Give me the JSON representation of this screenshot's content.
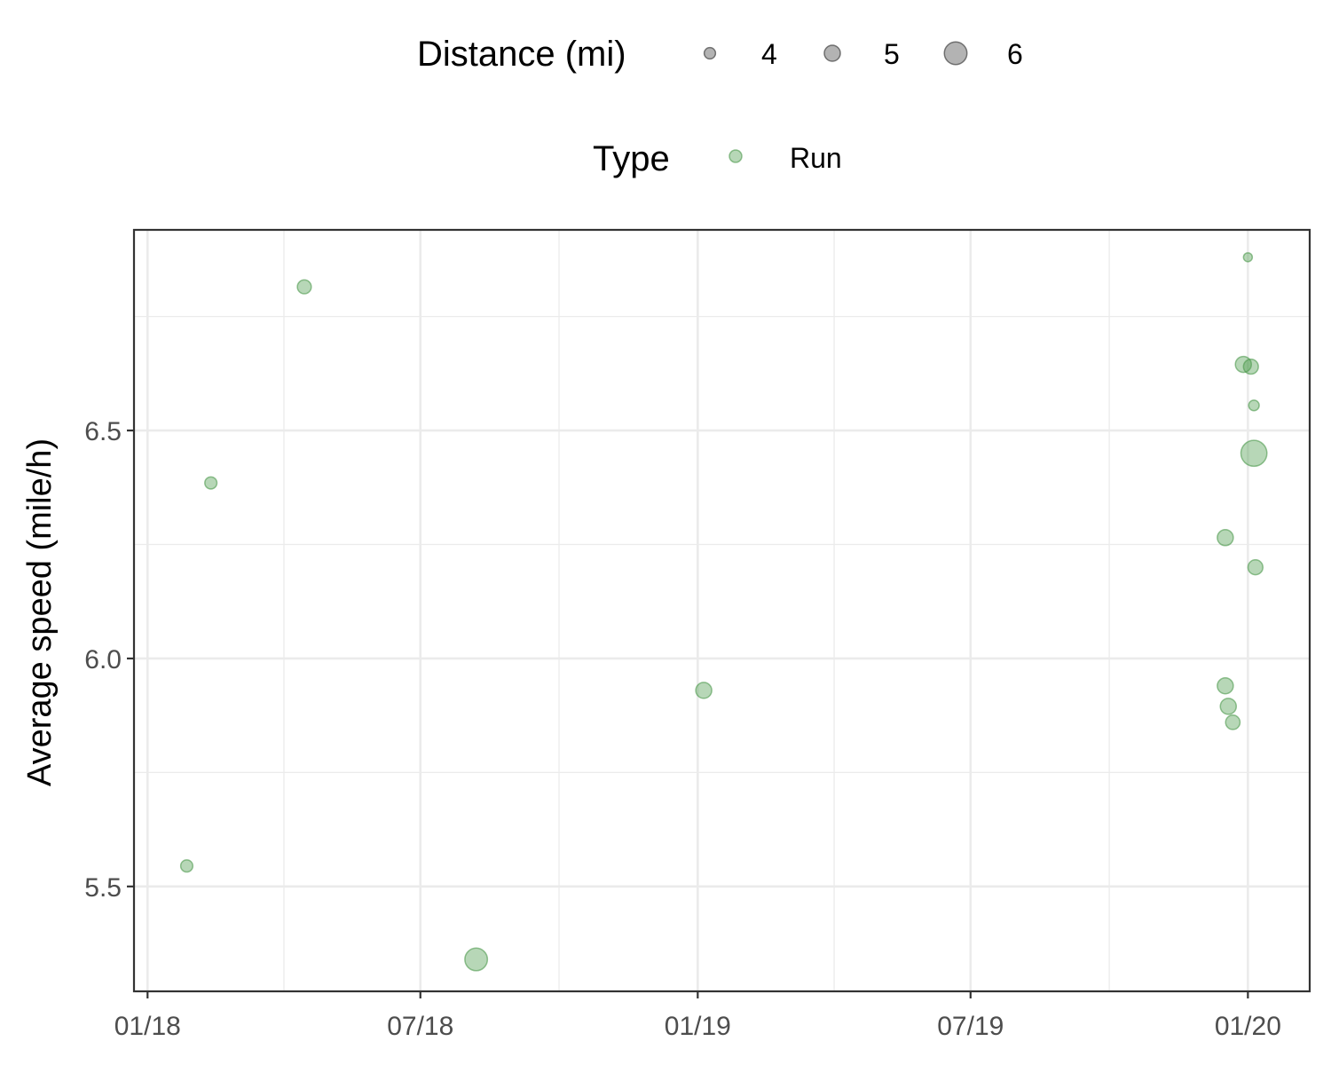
{
  "chart_data": {
    "type": "scatter",
    "title": "",
    "xlabel": "",
    "ylabel": "Average speed (mile/h)",
    "x_ticks": [
      "01/18",
      "07/18",
      "01/19",
      "07/19",
      "01/20"
    ],
    "x_tick_dates": [
      "2018-01-01",
      "2018-07-01",
      "2019-01-01",
      "2019-07-01",
      "2020-01-01"
    ],
    "xlim": [
      "2017-12-23",
      "2020-02-11"
    ],
    "ylim": [
      5.27,
      6.94
    ],
    "y_ticks": [
      5.5,
      6.0,
      6.5
    ],
    "grid": true,
    "colors": {
      "point": "#4c9a4c"
    },
    "legend": {
      "placement": "top",
      "size": {
        "title": "Distance (mi)",
        "entries": [
          4,
          5,
          6
        ]
      },
      "color": {
        "title": "Type",
        "entries": [
          "Run"
        ]
      }
    },
    "series": [
      {
        "name": "Run",
        "points": [
          {
            "date": "2018-01-27",
            "speed": 5.545,
            "distance_mi": 4.2
          },
          {
            "date": "2018-02-12",
            "speed": 6.385,
            "distance_mi": 4.2
          },
          {
            "date": "2018-04-15",
            "speed": 6.815,
            "distance_mi": 4.6
          },
          {
            "date": "2018-08-07",
            "speed": 5.34,
            "distance_mi": 6.0
          },
          {
            "date": "2019-01-05",
            "speed": 5.93,
            "distance_mi": 5.0
          },
          {
            "date": "2019-12-17",
            "speed": 6.265,
            "distance_mi": 5.0
          },
          {
            "date": "2019-12-17",
            "speed": 5.94,
            "distance_mi": 5.0
          },
          {
            "date": "2019-12-19",
            "speed": 5.895,
            "distance_mi": 5.0
          },
          {
            "date": "2019-12-22",
            "speed": 5.86,
            "distance_mi": 4.7
          },
          {
            "date": "2019-12-29",
            "speed": 6.645,
            "distance_mi": 5.0
          },
          {
            "date": "2020-01-01",
            "speed": 6.88,
            "distance_mi": 3.3
          },
          {
            "date": "2020-01-03",
            "speed": 6.64,
            "distance_mi": 4.8
          },
          {
            "date": "2020-01-05",
            "speed": 6.555,
            "distance_mi": 3.8
          },
          {
            "date": "2020-01-05",
            "speed": 6.45,
            "distance_mi": 6.4
          },
          {
            "date": "2020-01-06",
            "speed": 6.2,
            "distance_mi": 4.8
          }
        ]
      }
    ]
  }
}
